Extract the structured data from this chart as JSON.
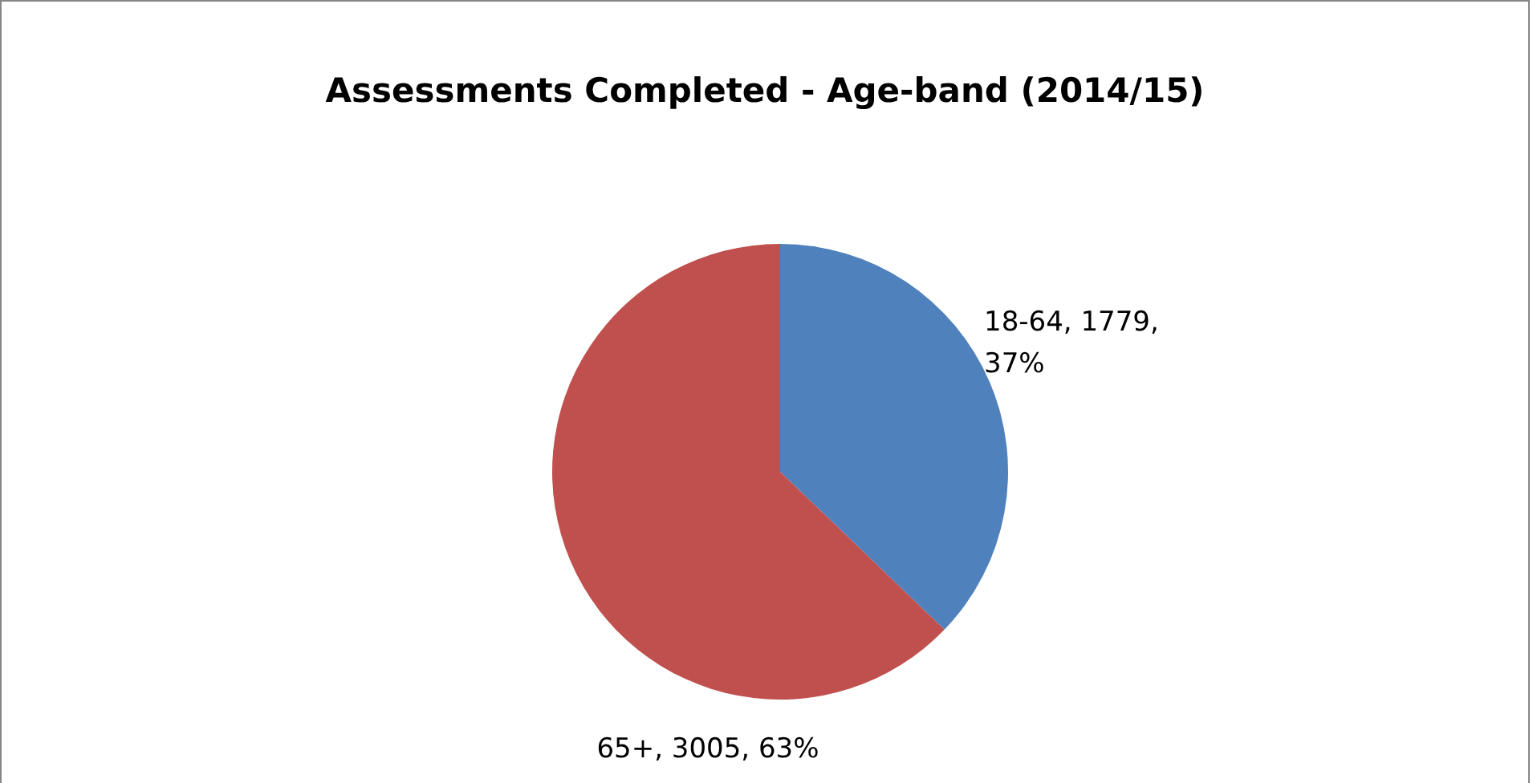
{
  "chart_data": {
    "type": "pie",
    "title": "Assessments Completed - Age-band (2014/15)",
    "categories": [
      "18-64",
      "65+"
    ],
    "values": [
      1779,
      3005
    ],
    "colors": [
      "#4f81bd",
      "#c0504d"
    ],
    "value_labels": [
      "1779, 37%",
      "3005, 63%"
    ],
    "legend": false
  }
}
